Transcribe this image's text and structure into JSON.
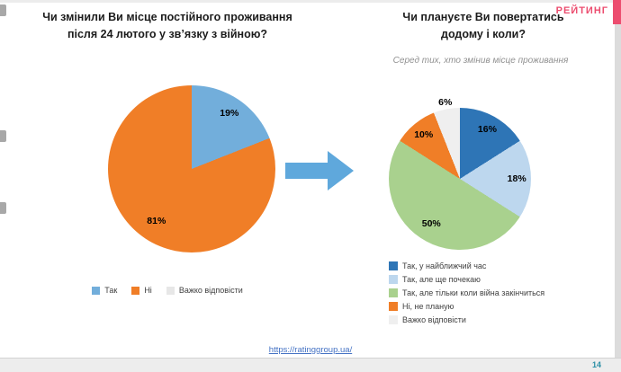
{
  "page": {
    "logo_text": "РЕЙТИНГ",
    "url": "https://ratinggroup.ua/",
    "page_number": "14"
  },
  "colors": {
    "logo_pink": "#EC4D6F",
    "page_number_teal": "#2C8FA6",
    "arrow_blue": "#5FA8DC"
  },
  "arrow": {
    "color": "#5FA8DC"
  },
  "titles": {
    "left_line1": "Чи змінили Ви місце постійного проживання",
    "left_line2": "після  24 лютого у зв’язку з війною?",
    "right_line1": "Чи плануєте Ви повертатись",
    "right_line2": "додому і коли?",
    "right_subtitle": "Серед тих, хто змінив місце проживання"
  },
  "chart_data": [
    {
      "type": "pie",
      "title": "Чи змінили Ви місце постійного проживання після 24 лютого у зв’язку з війною?",
      "labels": [
        "Так",
        "Ні",
        "Важко відповісти"
      ],
      "values": [
        19,
        81,
        0
      ],
      "colors": [
        "#72AEDB",
        "#F07E27",
        "#E7E7E7"
      ],
      "data_labels": [
        "19%",
        "81%",
        ""
      ],
      "legend_position": "bottom-horizontal"
    },
    {
      "type": "pie",
      "title": "Чи плануєте Ви повертатись додому і коли?",
      "subtitle": "Серед тих, хто змінив місце проживання",
      "labels": [
        "Так, у найближчий час",
        "Так, але ще почекаю",
        "Так, але тільки коли війна закінчиться",
        "Ні, не планую",
        "Важко відповісти"
      ],
      "values": [
        16,
        18,
        50,
        10,
        6
      ],
      "colors": [
        "#2E75B6",
        "#BDD7EE",
        "#A9D18E",
        "#F07E27",
        "#EFEFEF"
      ],
      "data_labels": [
        "16%",
        "18%",
        "50%",
        "10%",
        "6%"
      ],
      "legend_position": "bottom-vertical"
    }
  ]
}
